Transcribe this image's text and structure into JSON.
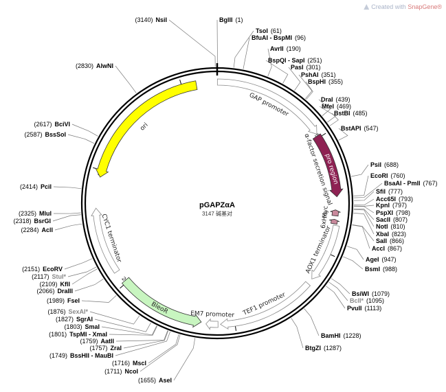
{
  "credit": {
    "prefix": "Created with",
    "brand": "SnapGene®"
  },
  "plasmid": {
    "name": "pGAPZαA",
    "bp": 3147,
    "bp_unit": "碱基对"
  },
  "ticks": [
    500,
    1000,
    1500,
    2000,
    2500,
    3000
  ],
  "sites": [
    {
      "name": "NsiI",
      "pos": "(3140)"
    },
    {
      "name": "BglII",
      "pos": "(1)"
    },
    {
      "name": "TsoI",
      "pos": "(61)"
    },
    {
      "name": "BfuAI - BspMI",
      "pos": "(96)"
    },
    {
      "name": "AvrII",
      "pos": "(190)"
    },
    {
      "name": "BspQI - SapI",
      "pos": "(251)"
    },
    {
      "name": "PasI",
      "pos": "(301)"
    },
    {
      "name": "PshAI",
      "pos": "(351)"
    },
    {
      "name": "BspHI",
      "pos": "(355)"
    },
    {
      "name": "DraI",
      "pos": "(439)"
    },
    {
      "name": "MfeI",
      "pos": "(469)"
    },
    {
      "name": "BstBI",
      "pos": "(485)"
    },
    {
      "name": "BstAPI",
      "pos": "(547)"
    },
    {
      "name": "PsiI",
      "pos": "(688)"
    },
    {
      "name": "EcoRI",
      "pos": "(760)"
    },
    {
      "name": "BsaAI - PmlI",
      "pos": "(767)"
    },
    {
      "name": "SfiI",
      "pos": "(777)"
    },
    {
      "name": "Acc65I",
      "pos": "(793)"
    },
    {
      "name": "KpnI",
      "pos": "(797)"
    },
    {
      "name": "PspXI",
      "pos": "(798)"
    },
    {
      "name": "SacII",
      "pos": "(807)"
    },
    {
      "name": "NotI",
      "pos": "(810)"
    },
    {
      "name": "XbaI",
      "pos": "(823)"
    },
    {
      "name": "SalI",
      "pos": "(866)"
    },
    {
      "name": "AccI",
      "pos": "(867)"
    },
    {
      "name": "AgeI",
      "pos": "(947)"
    },
    {
      "name": "BsmI",
      "pos": "(988)"
    },
    {
      "name": "BsiWI",
      "pos": "(1079)"
    },
    {
      "name": "BclI*",
      "pos": "(1095)",
      "gray": true
    },
    {
      "name": "PvuII",
      "pos": "(1113)"
    },
    {
      "name": "BamHI",
      "pos": "(1228)"
    },
    {
      "name": "BtgZI",
      "pos": "(1287)"
    },
    {
      "name": "AseI",
      "pos": "(1655)"
    },
    {
      "name": "NcoI",
      "pos": "(1711)"
    },
    {
      "name": "MscI",
      "pos": "(1716)"
    },
    {
      "name": "BssHII - MauBI",
      "pos": "(1749)"
    },
    {
      "name": "ZraI",
      "pos": "(1757)"
    },
    {
      "name": "AatII",
      "pos": "(1759)"
    },
    {
      "name": "TspMI - XmaI",
      "pos": "(1801)"
    },
    {
      "name": "SmaI",
      "pos": "(1803)"
    },
    {
      "name": "SgrAI",
      "pos": "(1827)"
    },
    {
      "name": "SexAI*",
      "pos": "(1876)",
      "gray": true
    },
    {
      "name": "FseI",
      "pos": "(1989)"
    },
    {
      "name": "DraIII",
      "pos": "(2066)"
    },
    {
      "name": "KflI",
      "pos": "(2109)"
    },
    {
      "name": "StuI*",
      "pos": "(2117)",
      "gray": true
    },
    {
      "name": "EcoRV",
      "pos": "(2151)"
    },
    {
      "name": "AclI",
      "pos": "(2284)"
    },
    {
      "name": "BsrGI",
      "pos": "(2318)"
    },
    {
      "name": "MluI",
      "pos": "(2325)"
    },
    {
      "name": "PciI",
      "pos": "(2414)"
    },
    {
      "name": "BssSoI",
      "pos": "(2587)"
    },
    {
      "name": "BciVI",
      "pos": "(2617)"
    },
    {
      "name": "AlwNI",
      "pos": "(2830)"
    }
  ],
  "features": [
    {
      "label": "GAP promoter",
      "start": 1,
      "end": 483,
      "color": "#ffffff",
      "kind": "promoter"
    },
    {
      "label": "α-factor secretion signal",
      "start": 490,
      "end": 760,
      "color": "#8e2253",
      "kind": "signal"
    },
    {
      "label": "pro region",
      "start": 535,
      "end": 748,
      "color": "#8e2253",
      "kind": "inner"
    },
    {
      "label": "Myc",
      "start": 815,
      "end": 840,
      "color": "#c9899c",
      "kind": "tag"
    },
    {
      "label": "6xHis",
      "start": 855,
      "end": 874,
      "color": "#c9899c",
      "kind": "tag"
    },
    {
      "label": "AOX1 terminator",
      "start": 880,
      "end": 1125,
      "color": "#ffffff",
      "kind": "terminator"
    },
    {
      "label": "TEF1 promoter",
      "start": 1150,
      "end": 1560,
      "color": "#ffffff",
      "kind": "promoter"
    },
    {
      "label": "EM7 promoter",
      "start": 1570,
      "end": 1620,
      "color": "#ffffff",
      "kind": "promoter"
    },
    {
      "label": "BleoR",
      "start": 1640,
      "end": 2010,
      "color": "#c8f5c0",
      "kind": "cds"
    },
    {
      "label": "CYC1 terminator",
      "start": 2060,
      "end": 2340,
      "color": "#ffffff",
      "kind": "terminator"
    },
    {
      "label": "ori",
      "start": 2470,
      "end": 3060,
      "color": "#ffff00",
      "kind": "ori"
    }
  ]
}
